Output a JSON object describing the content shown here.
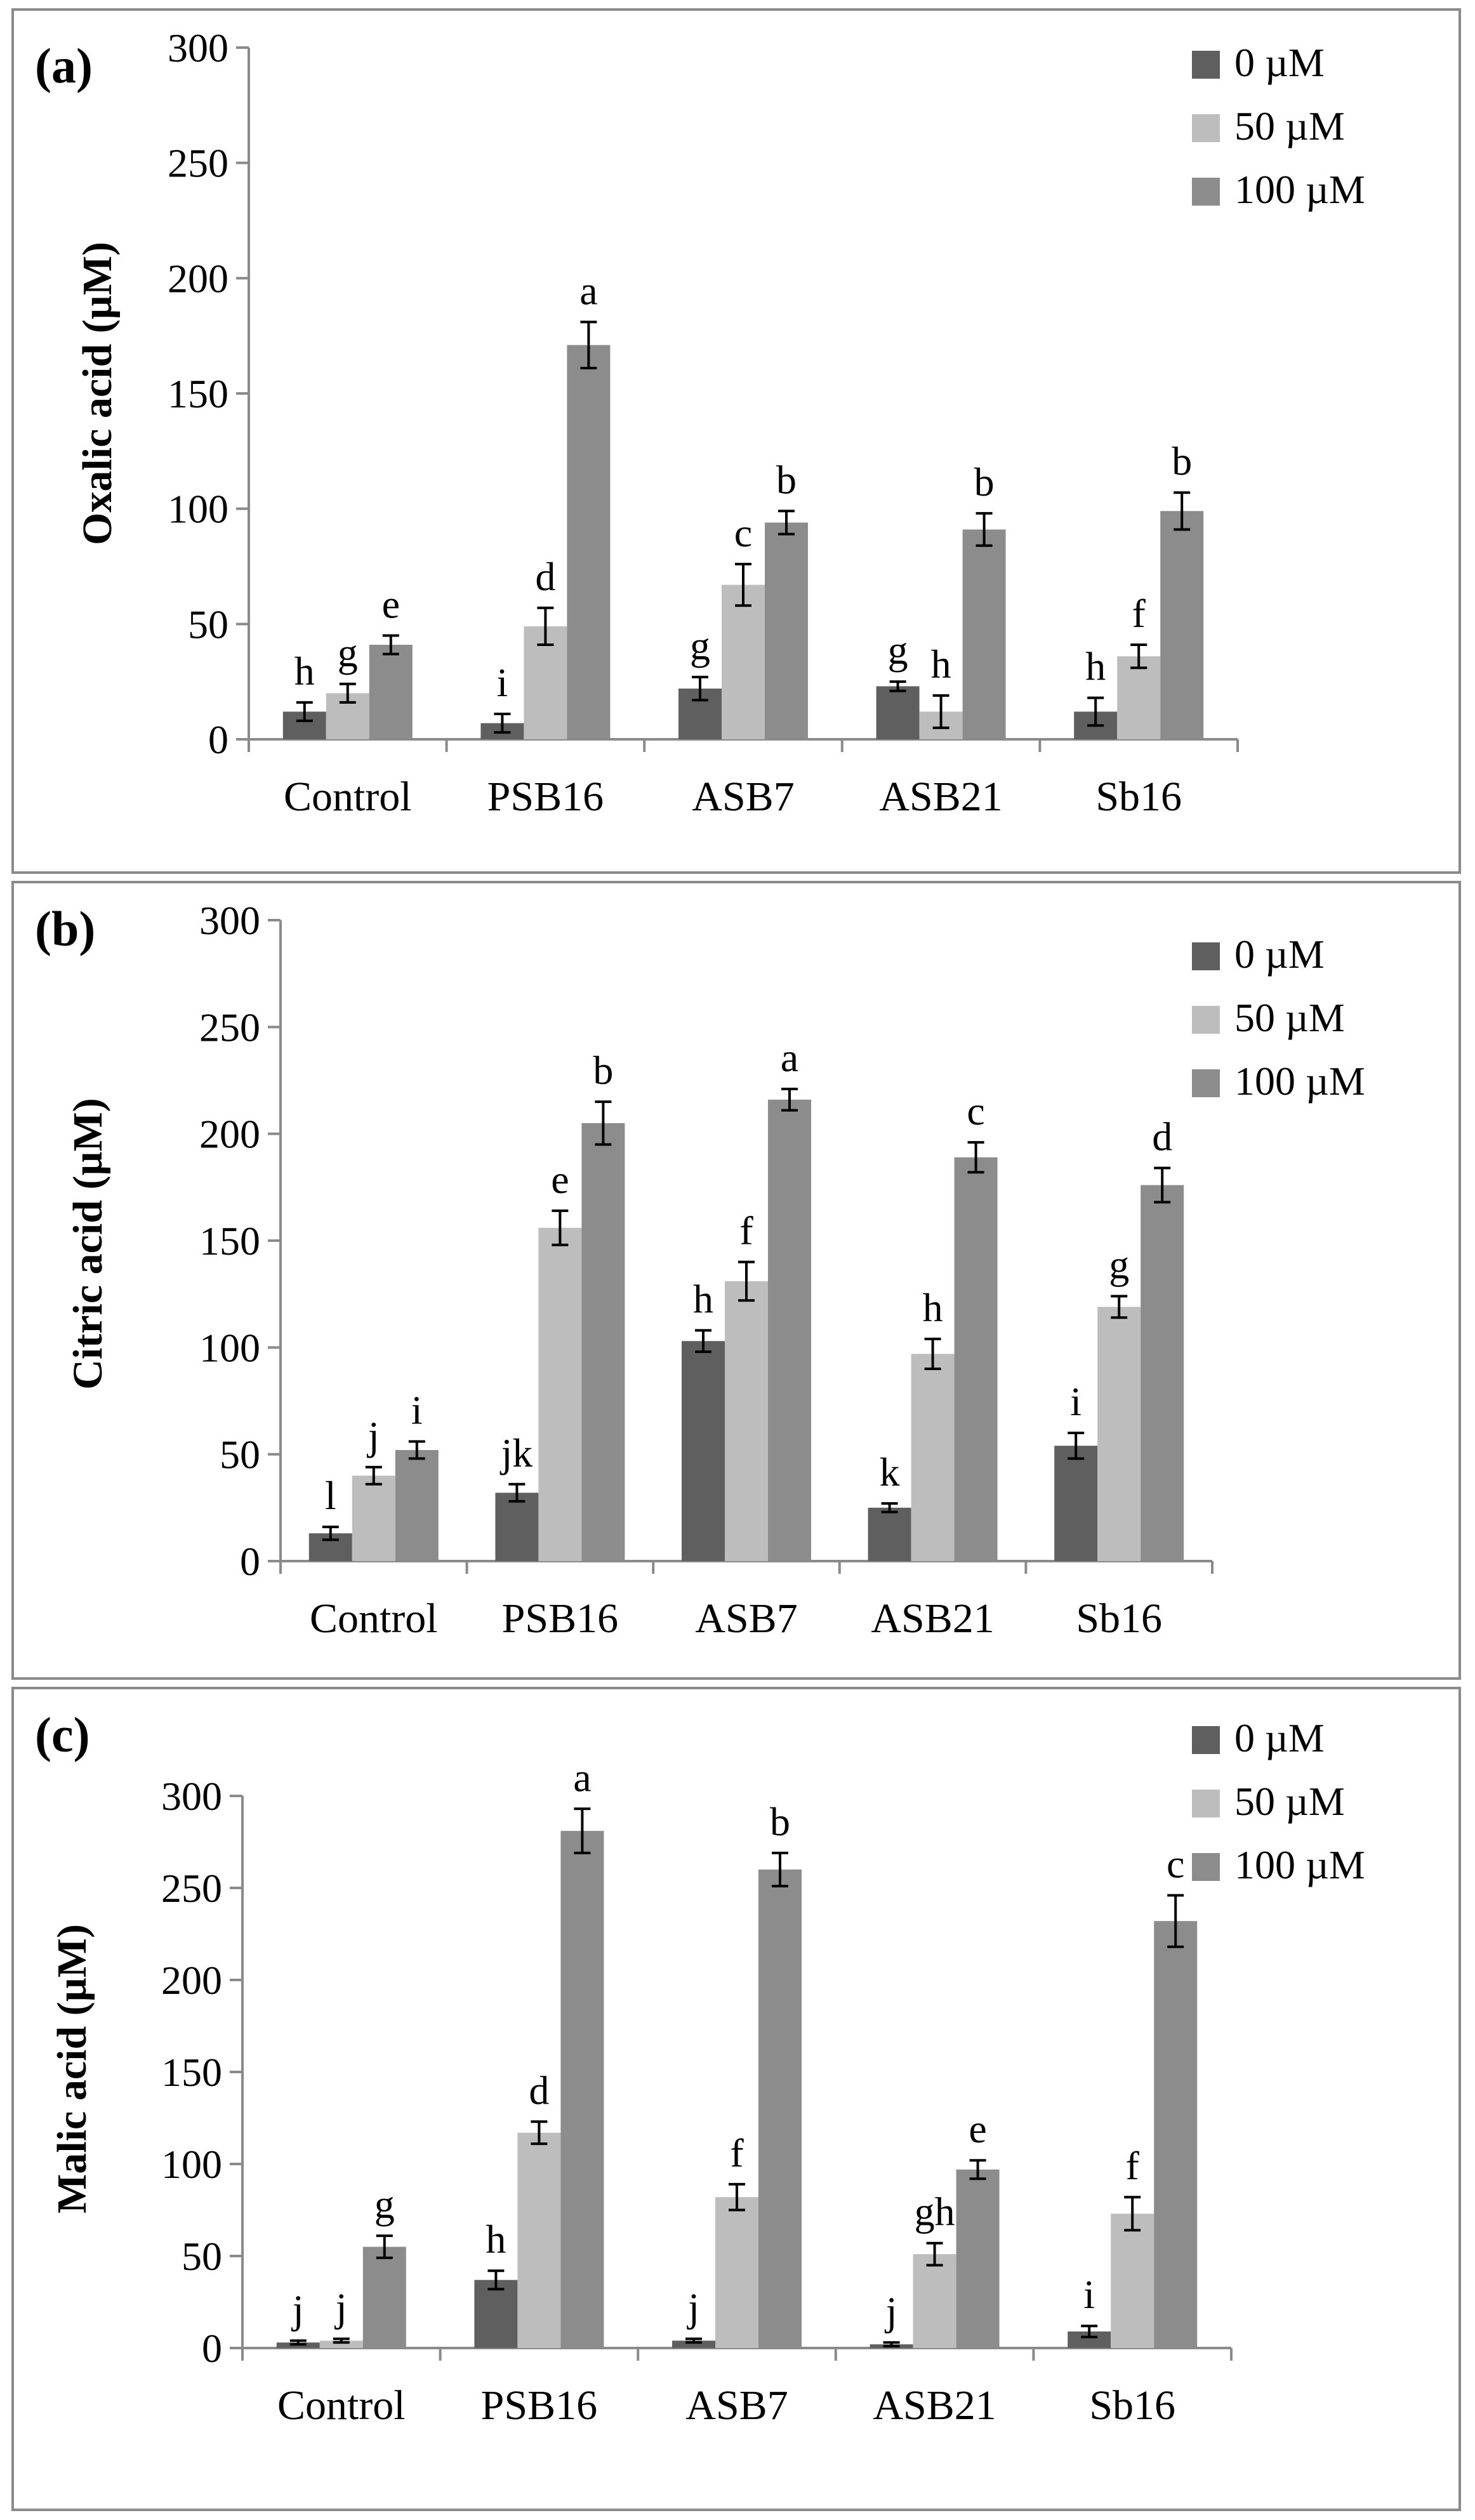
{
  "legend_unit_labels": [
    "0  µM",
    "50 µM",
    "100 µM"
  ],
  "colors": {
    "s0": "#5f5f5f",
    "s50": "#bdbdbd",
    "s100": "#8c8c8c",
    "axis": "#8a8a8a",
    "frame": "#8a8a8a"
  },
  "chart_data": [
    {
      "type": "bar",
      "panel_label": "(a)",
      "ylabel": "Oxalic acid (µM)",
      "xlabel": "",
      "ylim": [
        0,
        300
      ],
      "yticks": [
        0,
        50,
        100,
        150,
        200,
        250,
        300
      ],
      "categories": [
        "Control",
        "PSB16",
        "ASB7",
        "ASB21",
        "Sb16"
      ],
      "legend_position": "top-right",
      "series": [
        {
          "name": "0  µM",
          "values": [
            12,
            7,
            22,
            23,
            12
          ],
          "errors": [
            4,
            4,
            5,
            2,
            6
          ],
          "letters": [
            "h",
            "i",
            "g",
            "g",
            "h"
          ]
        },
        {
          "name": "50 µM",
          "values": [
            20,
            49,
            67,
            12,
            36
          ],
          "errors": [
            4,
            8,
            9,
            7,
            5
          ],
          "letters": [
            "g",
            "d",
            "c",
            "h",
            "f"
          ]
        },
        {
          "name": "100 µM",
          "values": [
            41,
            171,
            94,
            91,
            99
          ],
          "errors": [
            4,
            10,
            5,
            7,
            8
          ],
          "letters": [
            "e",
            "a",
            "b",
            "b",
            "b"
          ]
        }
      ]
    },
    {
      "type": "bar",
      "panel_label": "(b)",
      "ylabel": "Citric acid (µM)",
      "xlabel": "",
      "ylim": [
        0,
        300
      ],
      "yticks": [
        0,
        50,
        100,
        150,
        200,
        250,
        300
      ],
      "categories": [
        "Control",
        "PSB16",
        "ASB7",
        "ASB21",
        "Sb16"
      ],
      "legend_position": "top-right",
      "series": [
        {
          "name": "0  µM",
          "values": [
            13,
            32,
            103,
            25,
            54
          ],
          "errors": [
            3,
            4,
            5,
            2,
            6
          ],
          "letters": [
            "l",
            "jk",
            "h",
            "k",
            "i"
          ]
        },
        {
          "name": "50 µM",
          "values": [
            40,
            156,
            131,
            97,
            119
          ],
          "errors": [
            4,
            8,
            9,
            7,
            5
          ],
          "letters": [
            "j",
            "e",
            "f",
            "h",
            "g"
          ]
        },
        {
          "name": "100 µM",
          "values": [
            52,
            205,
            216,
            189,
            176
          ],
          "errors": [
            4,
            10,
            5,
            7,
            8
          ],
          "letters": [
            "i",
            "b",
            "a",
            "c",
            "d"
          ]
        }
      ]
    },
    {
      "type": "bar",
      "panel_label": "(c)",
      "ylabel": "Malic acid (µM)",
      "xlabel": "",
      "ylim": [
        0,
        300
      ],
      "yticks": [
        0,
        50,
        100,
        150,
        200,
        250,
        300
      ],
      "categories": [
        "Control",
        "PSB16",
        "ASB7",
        "ASB21",
        "Sb16"
      ],
      "legend_position": "top-right",
      "series": [
        {
          "name": "0  µM",
          "values": [
            3,
            37,
            4,
            2,
            9
          ],
          "errors": [
            1,
            5,
            1,
            1,
            3
          ],
          "letters": [
            "j",
            "h",
            "j",
            "j",
            "i"
          ]
        },
        {
          "name": "50 µM",
          "values": [
            4,
            117,
            82,
            51,
            73
          ],
          "errors": [
            1,
            6,
            7,
            6,
            9
          ],
          "letters": [
            "j",
            "d",
            "f",
            "gh",
            "f"
          ]
        },
        {
          "name": "100 µM",
          "values": [
            55,
            281,
            260,
            97,
            232
          ],
          "errors": [
            6,
            12,
            9,
            5,
            14
          ],
          "letters": [
            "g",
            "a",
            "b",
            "e",
            "c"
          ]
        }
      ]
    }
  ]
}
